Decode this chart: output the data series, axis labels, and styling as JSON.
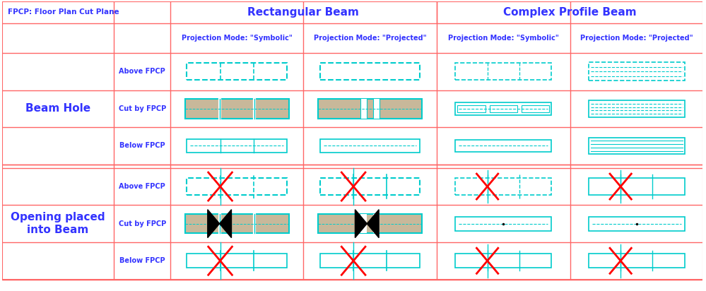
{
  "title_text": "FPCP: Floor Plan Cut Plane",
  "col_headers": [
    "Rectangular Beam",
    "Complex Profile Beam"
  ],
  "sub_headers": [
    "Projection Mode: \"Symbolic\"",
    "Projection Mode: \"Projected\"",
    "Projection Mode: \"Symbolic\"",
    "Projection Mode: \"Projected\""
  ],
  "row_group1": "Beam Hole",
  "row_group2": "Opening placed\ninto Beam",
  "row_labels": [
    "Above FPCP",
    "Cut by FPCP",
    "Below FPCP"
  ],
  "blue": "#3333FF",
  "cyan": "#00CCCC",
  "red_border": "#FF6666",
  "tan": "#C8B89A",
  "bg": "#FFFFFF",
  "light_blue_fill": "#E8FAFA"
}
